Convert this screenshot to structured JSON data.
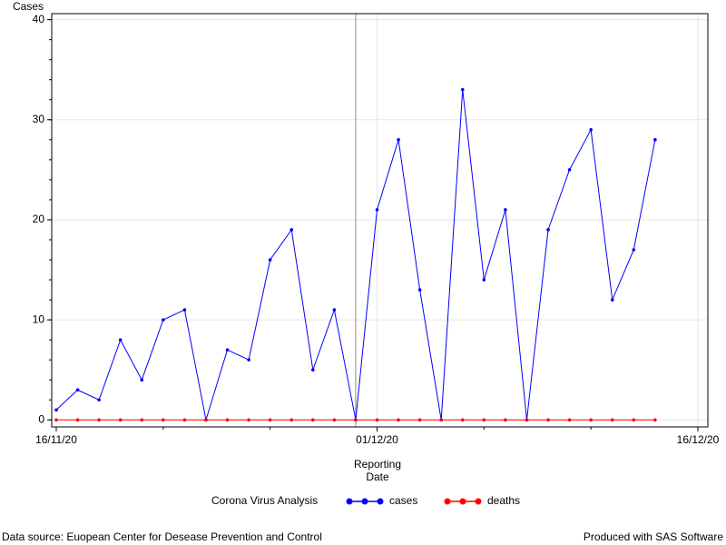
{
  "chart_data": {
    "type": "line",
    "y_label": "Cases",
    "x_label": "Reporting Date",
    "legend_title": "Corona Virus Analysis",
    "footnote_left": "Data source: Euopean Center for Desease Prevention and Control",
    "footnote_right": "Produced with SAS Software",
    "x": [
      "2020-11-16",
      "2020-11-17",
      "2020-11-18",
      "2020-11-19",
      "2020-11-20",
      "2020-11-21",
      "2020-11-22",
      "2020-11-23",
      "2020-11-24",
      "2020-11-25",
      "2020-11-26",
      "2020-11-27",
      "2020-11-28",
      "2020-11-29",
      "2020-11-30",
      "2020-12-01",
      "2020-12-02",
      "2020-12-03",
      "2020-12-04",
      "2020-12-05",
      "2020-12-06",
      "2020-12-07",
      "2020-12-08",
      "2020-12-09",
      "2020-12-10",
      "2020-12-11",
      "2020-12-12",
      "2020-12-13",
      "2020-12-14"
    ],
    "series": [
      {
        "name": "cases",
        "color": "#0000ff",
        "values": [
          1,
          3,
          2,
          8,
          4,
          10,
          11,
          0,
          7,
          6,
          16,
          19,
          5,
          11,
          0,
          21,
          28,
          13,
          0,
          33,
          14,
          21,
          0,
          19,
          25,
          29,
          12,
          17,
          28
        ]
      },
      {
        "name": "deaths",
        "color": "#ff0000",
        "values": [
          0,
          0,
          0,
          0,
          0,
          0,
          0,
          0,
          0,
          0,
          0,
          0,
          0,
          0,
          0,
          0,
          0,
          0,
          0,
          0,
          0,
          0,
          0,
          0,
          0,
          0,
          0,
          0,
          0
        ]
      }
    ],
    "xlim": [
      "2020-11-16",
      "2020-12-16"
    ],
    "xticks": [
      {
        "value": "2020-11-16",
        "label": "16/11/20"
      },
      {
        "value": "2020-12-01",
        "label": "01/12/20"
      },
      {
        "value": "2020-12-16",
        "label": "16/12/20"
      }
    ],
    "ylim": [
      -0.7,
      40.6
    ],
    "yticks": [
      0,
      10,
      20,
      30,
      40
    ],
    "reference_line_x": "2020-11-30",
    "grid": true
  }
}
